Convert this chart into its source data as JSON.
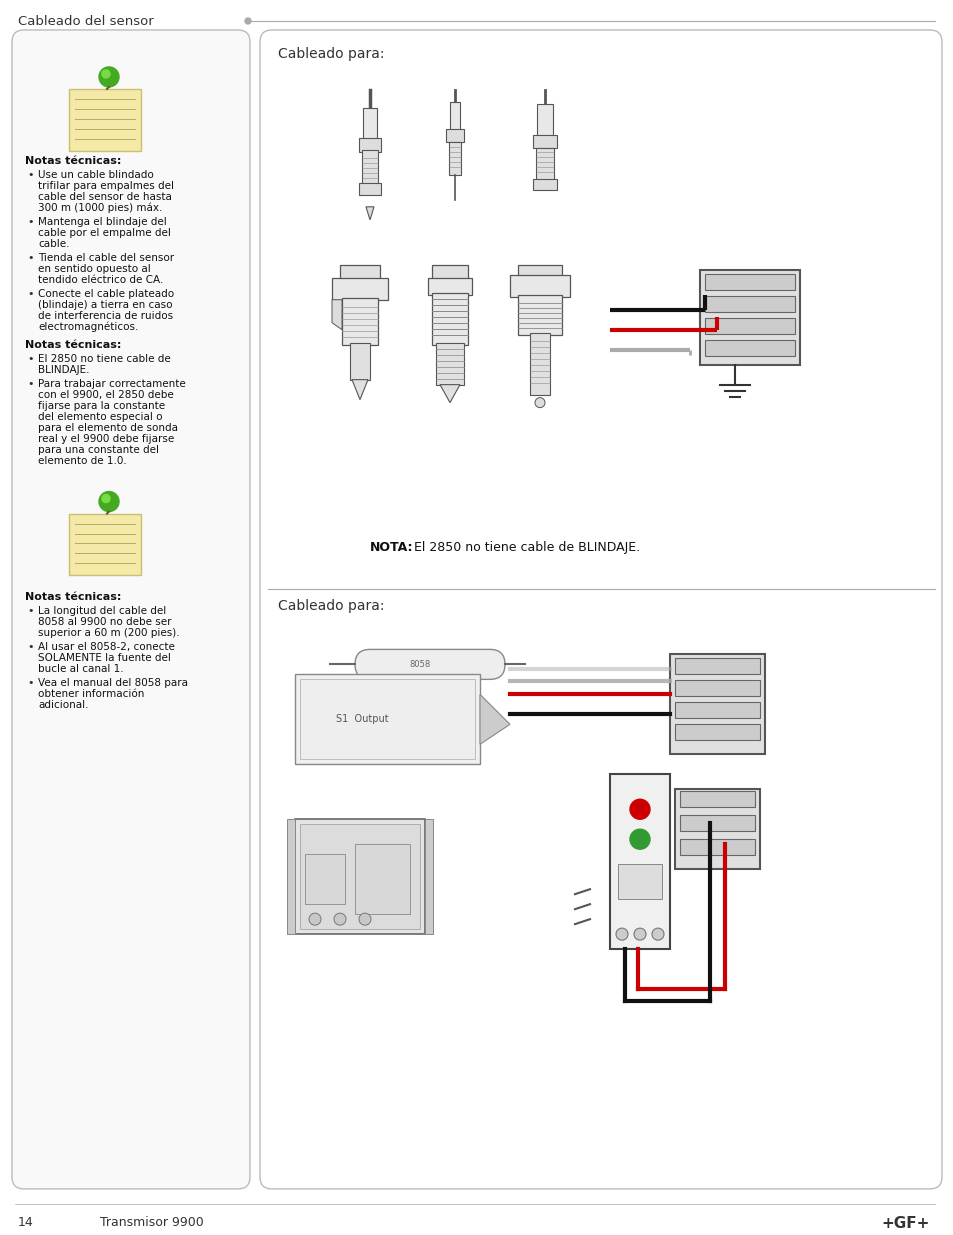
{
  "page_title": "Cableado del sensor",
  "page_number": "14",
  "page_subtitle": "Transmisor 9900",
  "brand": "+GF+",
  "bg_color": "#ffffff",
  "border_color": "#cccccc",
  "section1_header": "Cableado para:",
  "section2_header": "Cableado para:",
  "nota1_title": "Notas técnicas:",
  "nota1_bullets": [
    "Use un cable blindado trifilar para empalmes del cable del sensor de hasta 300 m (1000 pies) máx.",
    "Mantenga el blindaje del cable por el empalme del cable.",
    "Tienda el cable del sensor en sentido opuesto al tendido eléctrico de CA.",
    "Conecte el cable plateado (blindaje) a tierra en caso de interferencia de ruidos electromagnéticos."
  ],
  "nota2_title": "Notas técnicas:",
  "nota2_bullets": [
    "El 2850 no tiene cable de BLINDAJE.",
    "Para trabajar correctamente con el 9900, el 2850 debe fijarse para la constante del elemento especial o para el elemento de sonda real y el 9900 debe fijarse para una constante del elemento de 1.0."
  ],
  "nota3_title": "Notas técnicas:",
  "nota3_bullets": [
    "La longitud del cable del 8058 al 9900 no debe ser superior a 60 m (200 pies).",
    "Al usar el 8058-2, conecte SOLAMENTE la fuente del bucle al canal 1.",
    "Vea el manual del 8058 para obtener información adicional."
  ],
  "nota_caption_bold": "NOTA:",
  "nota_caption_rest": " El 2850 no tiene cable de BLINDAJE.",
  "wire_red": "#cc0000",
  "wire_black": "#111111",
  "wire_gray": "#aaaaaa",
  "dot_red": "#cc0000",
  "dot_green": "#339933",
  "note_yellow": "#f5e9a8",
  "note_border": "#c8c070",
  "pin_green": "#44aa22",
  "pin_light": "#77dd44"
}
